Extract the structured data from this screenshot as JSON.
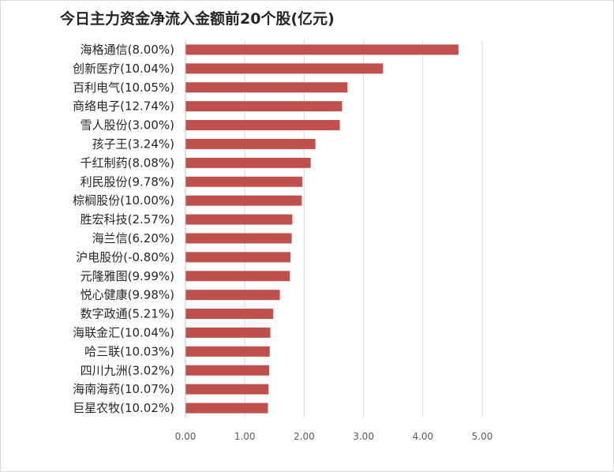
{
  "chart_data": {
    "type": "bar",
    "orientation": "horizontal",
    "title": "今日主力资金净流入金额前20个股(亿元)",
    "categories": [
      "海格通信(8.00%)",
      "创新医疗(10.04%)",
      "百利电气(10.05%)",
      "商络电子(12.74%)",
      "雪人股份(3.00%)",
      "孩子王(3.24%)",
      "千红制药(8.08%)",
      "利民股份(9.78%)",
      "棕榈股份(10.00%)",
      "胜宏科技(2.57%)",
      "海兰信(6.20%)",
      "沪电股份(-0.80%)",
      "元隆雅图(9.99%)",
      "悦心健康(9.98%)",
      "数字政通(5.21%)",
      "海联金汇(10.04%)",
      "哈三联(10.03%)",
      "四川九洲(3.02%)",
      "海南海药(10.07%)",
      "巨星农牧(10.02%)"
    ],
    "values": [
      4.6,
      3.33,
      2.73,
      2.64,
      2.6,
      2.19,
      2.11,
      1.97,
      1.96,
      1.8,
      1.79,
      1.77,
      1.76,
      1.59,
      1.48,
      1.43,
      1.42,
      1.41,
      1.4,
      1.39
    ],
    "xlim": [
      0,
      5
    ],
    "xticks": [
      "0.00",
      "1.00",
      "2.00",
      "3.00",
      "4.00",
      "5.00"
    ],
    "xlabel": "",
    "ylabel": "",
    "grid": true,
    "legend": "none",
    "bar_color": "#c0504d",
    "grid_color": "#d9d9d9"
  }
}
